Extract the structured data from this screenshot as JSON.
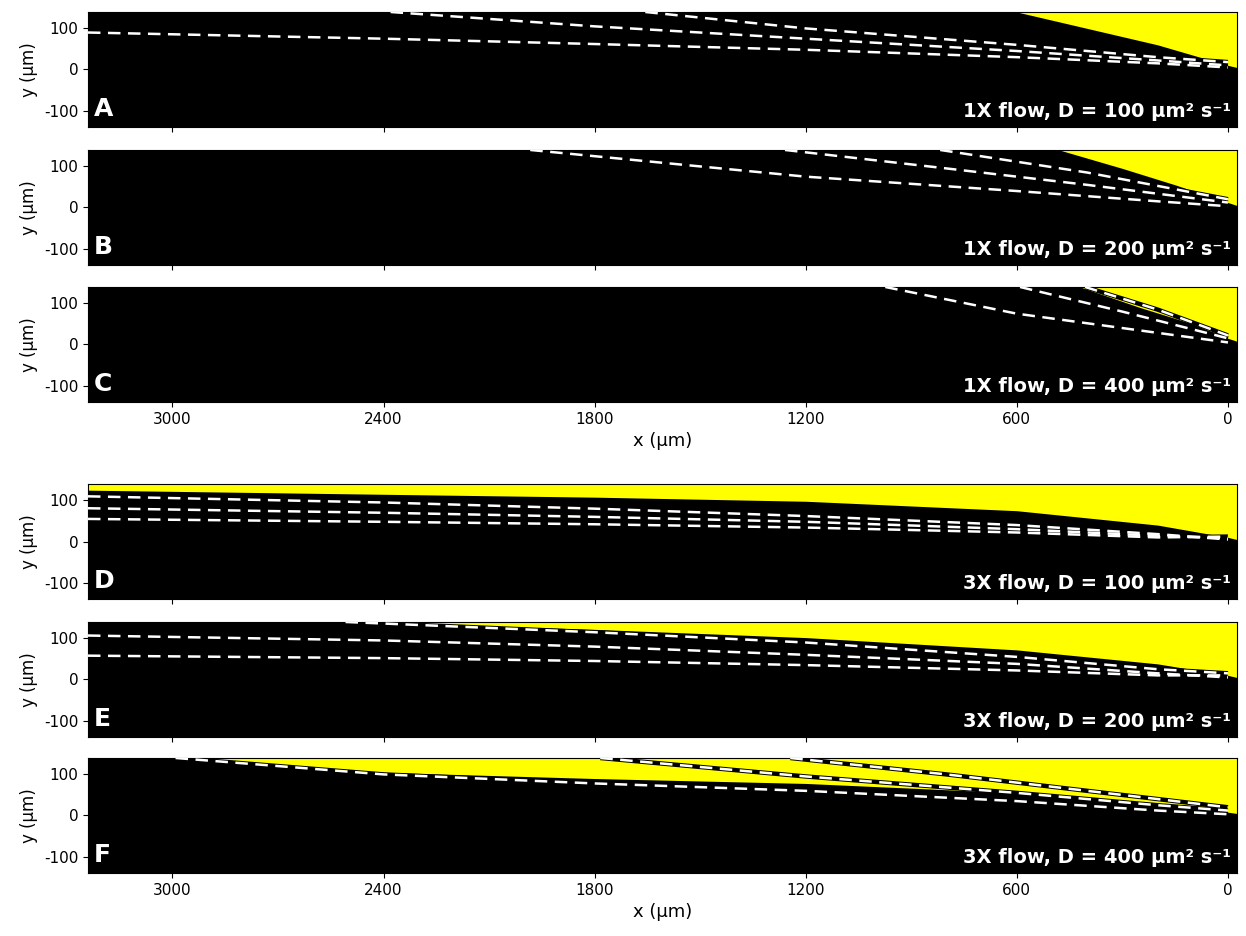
{
  "chart_data": [
    {
      "type": "line",
      "panel_label": "A",
      "annotation": "1X flow, D = 100 µm² s⁻¹",
      "ylabel": "y (µm)",
      "xlim": [
        3240,
        -25
      ],
      "ylim": [
        -140,
        140
      ],
      "xticks": [
        3000,
        2400,
        1800,
        1200,
        600,
        0
      ],
      "yticks": [
        -100,
        0,
        100
      ],
      "tick_labels": "y",
      "region": {
        "color": "#ffff00",
        "x": [
          600,
          400,
          200,
          0,
          -25
        ],
        "values": [
          140,
          100,
          60,
          10,
          5
        ]
      },
      "series": [
        {
          "color": "#ffffff",
          "line_style": "dashed",
          "x": [
            3240,
            2400,
            1800,
            1200,
            600,
            200,
            0
          ],
          "values": [
            90,
            75,
            62,
            48,
            30,
            15,
            5
          ]
        },
        {
          "color": "#ffffff",
          "line_style": "dashed",
          "x": [
            2380,
            1800,
            1200,
            600,
            200,
            0
          ],
          "values": [
            140,
            105,
            75,
            45,
            22,
            10
          ]
        },
        {
          "color": "#ffffff",
          "line_style": "dashed",
          "x": [
            1656,
            1200,
            600,
            200,
            0
          ],
          "values": [
            140,
            100,
            60,
            30,
            18
          ]
        }
      ]
    },
    {
      "type": "line",
      "panel_label": "B",
      "annotation": "1X flow, D = 200 µm² s⁻¹",
      "ylabel": "y (µm)",
      "xlim": [
        3240,
        -25
      ],
      "ylim": [
        -140,
        140
      ],
      "xticks": [
        3000,
        2400,
        1800,
        1200,
        600,
        0
      ],
      "yticks": [
        -100,
        0,
        100
      ],
      "tick_labels": "y",
      "region": {
        "color": "#ffff00",
        "x": [
          480,
          300,
          150,
          0,
          -25
        ],
        "values": [
          140,
          95,
          55,
          12,
          5
        ]
      },
      "series": [
        {
          "color": "#ffffff",
          "line_style": "dashed",
          "x": [
            1983,
            1200,
            600,
            200,
            0
          ],
          "values": [
            140,
            75,
            40,
            15,
            3
          ]
        },
        {
          "color": "#ffffff",
          "line_style": "dashed",
          "x": [
            1259,
            800,
            400,
            0
          ],
          "values": [
            140,
            95,
            55,
            12
          ]
        },
        {
          "color": "#ffffff",
          "line_style": "dashed",
          "x": [
            818,
            400,
            0
          ],
          "values": [
            140,
            85,
            20
          ]
        }
      ]
    },
    {
      "type": "line",
      "panel_label": "C",
      "annotation": "1X flow, D = 400 µm² s⁻¹",
      "xlabel": "x (µm)",
      "ylabel": "y (µm)",
      "xlim": [
        3240,
        -25
      ],
      "ylim": [
        -140,
        140
      ],
      "xticks": [
        3000,
        2400,
        1800,
        1200,
        600,
        0
      ],
      "yticks": [
        -100,
        0,
        100
      ],
      "region": {
        "color": "#ffff00",
        "x": [
          420,
          250,
          100,
          0,
          -25
        ],
        "values": [
          140,
          90,
          50,
          15,
          8
        ]
      },
      "series": [
        {
          "color": "#ffffff",
          "line_style": "dashed",
          "x": [
            974,
            600,
            300,
            0
          ],
          "values": [
            140,
            75,
            40,
            5
          ]
        },
        {
          "color": "#ffffff",
          "line_style": "dashed",
          "x": [
            591,
            300,
            0
          ],
          "values": [
            140,
            80,
            15
          ]
        },
        {
          "color": "#ffffff",
          "line_style": "dashed",
          "x": [
            406,
            200,
            0
          ],
          "values": [
            140,
            85,
            22
          ]
        }
      ]
    },
    {
      "type": "line",
      "panel_label": "D",
      "annotation": "3X flow, D = 100 µm² s⁻¹",
      "ylabel": "y (µm)",
      "xlim": [
        3240,
        -25
      ],
      "ylim": [
        -140,
        140
      ],
      "xticks": [
        3000,
        2400,
        1800,
        1200,
        600,
        0
      ],
      "yticks": [
        -100,
        0,
        100
      ],
      "tick_labels": "y",
      "region": {
        "color": "#ffff00",
        "x": [
          3240,
          2400,
          1800,
          1200,
          600,
          200,
          0,
          -25
        ],
        "values": [
          125,
          115,
          108,
          98,
          75,
          40,
          10,
          5
        ]
      },
      "series": [
        {
          "color": "#ffffff",
          "line_style": "dashed",
          "x": [
            3240,
            2400,
            1800,
            1200,
            600,
            200,
            0
          ],
          "values": [
            110,
            95,
            80,
            62,
            40,
            18,
            5
          ]
        },
        {
          "color": "#ffffff",
          "line_style": "dashed",
          "x": [
            3240,
            2400,
            1800,
            1200,
            600,
            200,
            0
          ],
          "values": [
            81,
            70,
            60,
            48,
            30,
            14,
            8
          ]
        },
        {
          "color": "#ffffff",
          "line_style": "dashed",
          "x": [
            3240,
            2400,
            1800,
            1200,
            600,
            200,
            0
          ],
          "values": [
            55,
            48,
            42,
            34,
            22,
            10,
            12
          ]
        }
      ]
    },
    {
      "type": "line",
      "panel_label": "E",
      "annotation": "3X flow, D = 200 µm² s⁻¹",
      "ylabel": "y (µm)",
      "xlim": [
        3240,
        -25
      ],
      "ylim": [
        -140,
        140
      ],
      "xticks": [
        3000,
        2400,
        1800,
        1200,
        600,
        0
      ],
      "yticks": [
        -100,
        0,
        100
      ],
      "tick_labels": "y",
      "region": {
        "color": "#ffff00",
        "x": [
          2494,
          1800,
          1200,
          600,
          200,
          0,
          -25
        ],
        "values": [
          140,
          122,
          102,
          72,
          38,
          10,
          5
        ]
      },
      "series": [
        {
          "color": "#ffffff",
          "line_style": "dashed",
          "x": [
            3240,
            2400,
            1800,
            1200,
            600,
            200,
            0
          ],
          "values": [
            107,
            95,
            80,
            60,
            38,
            15,
            5
          ]
        },
        {
          "color": "#ffffff",
          "line_style": "dashed",
          "x": [
            3240,
            2400,
            1800,
            1200,
            600,
            200,
            0
          ],
          "values": [
            58,
            52,
            45,
            35,
            22,
            10,
            10
          ]
        },
        {
          "color": "#ffffff",
          "line_style": "dashed",
          "x": [
            2508,
            1800,
            1200,
            600,
            200,
            0
          ],
          "values": [
            140,
            115,
            90,
            55,
            25,
            15
          ]
        }
      ]
    },
    {
      "type": "line",
      "panel_label": "F",
      "annotation": "3X flow, D = 400 µm² s⁻¹",
      "xlabel": "x (µm)",
      "ylabel": "y (µm)",
      "xlim": [
        3240,
        -25
      ],
      "ylim": [
        -140,
        140
      ],
      "xticks": [
        3000,
        2400,
        1800,
        1200,
        600,
        0
      ],
      "yticks": [
        -100,
        0,
        100
      ],
      "region": {
        "color": "#ffff00",
        "x": [
          2991,
          2400,
          1800,
          1200,
          600,
          200,
          0,
          -25
        ],
        "values": [
          140,
          105,
          90,
          78,
          55,
          30,
          8,
          5
        ]
      },
      "series": [
        {
          "color": "#ffffff",
          "line_style": "dashed",
          "x": [
            2991,
            2400,
            1800,
            1200,
            600,
            200,
            0
          ],
          "values": [
            140,
            100,
            78,
            60,
            35,
            12,
            3
          ]
        },
        {
          "color": "#ffffff",
          "line_style": "dashed",
          "x": [
            1784,
            1200,
            600,
            200,
            0
          ],
          "values": [
            140,
            95,
            55,
            25,
            12
          ]
        },
        {
          "color": "#ffffff",
          "line_style": "dashed",
          "x": [
            1244,
            800,
            400,
            0
          ],
          "values": [
            140,
            100,
            60,
            20
          ]
        }
      ]
    }
  ]
}
